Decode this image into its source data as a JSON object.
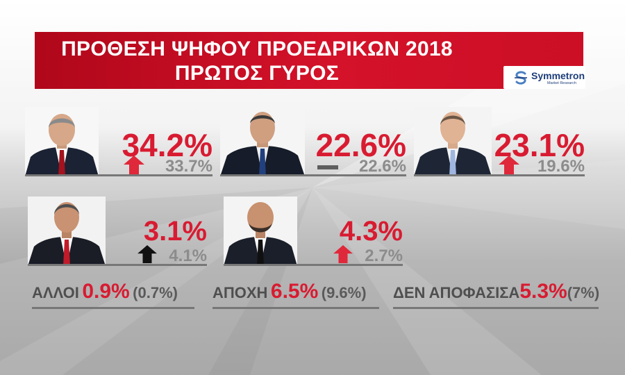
{
  "title": {
    "line1": "ΠΡΟΘΕΣΗ ΨΗΦΟΥ ΠΡΟΕΔΡΙΚΩΝ 2018",
    "line2": "ΠΡΩΤΟΣ ΓΥΡΟΣ"
  },
  "logo": {
    "name": "Symmetron",
    "tagline": "Market Research",
    "icon": "symmetron-swirl-icon"
  },
  "colors": {
    "accent": "#d81b31",
    "banner": "#cc0f25",
    "previous": "#8c8c8c",
    "arrow_up": "#e0283b",
    "arrow_black": "#111111"
  },
  "chart_data": {
    "type": "table",
    "title": "ΠΡΟΘΕΣΗ ΨΗΦΟΥ ΠΡΟΕΔΡΙΚΩΝ 2018",
    "subtitle": "ΠΡΩΤΟΣ ΓΥΡΟΣ",
    "candidates": [
      {
        "value": "34.2%",
        "previous": "33.7%",
        "trend": "up",
        "arrow_icon": "red-up-arrow-icon"
      },
      {
        "value": "22.6%",
        "previous": "22.6%",
        "trend": "same",
        "arrow_icon": "dash-icon"
      },
      {
        "value": "23.1%",
        "previous": "19.6%",
        "trend": "up",
        "arrow_icon": "red-up-arrow-icon"
      },
      {
        "value": "3.1%",
        "previous": "4.1%",
        "trend": "down",
        "arrow_icon": "black-up-arrow-icon"
      },
      {
        "value": "4.3%",
        "previous": "2.7%",
        "trend": "up",
        "arrow_icon": "red-up-arrow-icon"
      }
    ],
    "others": [
      {
        "label": "ΑΛΛΟΙ",
        "value": "0.9%",
        "previous": "(0.7%)"
      },
      {
        "label": "ΑΠΟΧΗ",
        "value": "6.5%",
        "previous": "(9.6%)"
      },
      {
        "label": "ΔΕΝ ΑΠΟΦΑΣΙΣΑ",
        "value": "5.3%",
        "previous": "(7%)"
      }
    ]
  }
}
